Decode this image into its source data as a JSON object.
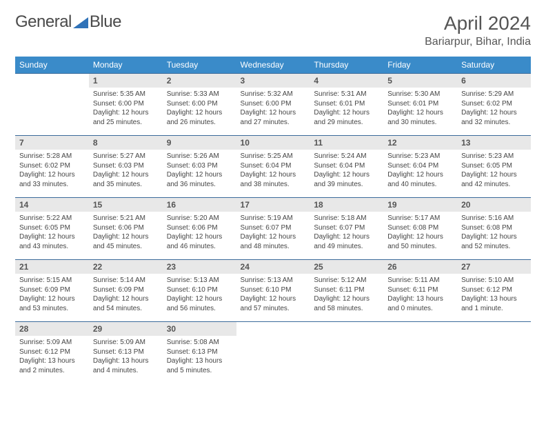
{
  "logo": {
    "text_left": "General",
    "text_right": "Blue",
    "icon_color": "#2f72b8"
  },
  "title": "April 2024",
  "location": "Bariarpur, Bihar, India",
  "colors": {
    "header_bg": "#3a8bc9",
    "row_border": "#3a6a9a",
    "daynum_bg": "#e8e8e8",
    "text": "#555"
  },
  "weekdays": [
    "Sunday",
    "Monday",
    "Tuesday",
    "Wednesday",
    "Thursday",
    "Friday",
    "Saturday"
  ],
  "first_weekday_offset": 1,
  "days": [
    {
      "n": 1,
      "sr": "5:35 AM",
      "ss": "6:00 PM",
      "dh": 12,
      "dm": 25
    },
    {
      "n": 2,
      "sr": "5:33 AM",
      "ss": "6:00 PM",
      "dh": 12,
      "dm": 26
    },
    {
      "n": 3,
      "sr": "5:32 AM",
      "ss": "6:00 PM",
      "dh": 12,
      "dm": 27
    },
    {
      "n": 4,
      "sr": "5:31 AM",
      "ss": "6:01 PM",
      "dh": 12,
      "dm": 29
    },
    {
      "n": 5,
      "sr": "5:30 AM",
      "ss": "6:01 PM",
      "dh": 12,
      "dm": 30
    },
    {
      "n": 6,
      "sr": "5:29 AM",
      "ss": "6:02 PM",
      "dh": 12,
      "dm": 32
    },
    {
      "n": 7,
      "sr": "5:28 AM",
      "ss": "6:02 PM",
      "dh": 12,
      "dm": 33
    },
    {
      "n": 8,
      "sr": "5:27 AM",
      "ss": "6:03 PM",
      "dh": 12,
      "dm": 35
    },
    {
      "n": 9,
      "sr": "5:26 AM",
      "ss": "6:03 PM",
      "dh": 12,
      "dm": 36
    },
    {
      "n": 10,
      "sr": "5:25 AM",
      "ss": "6:04 PM",
      "dh": 12,
      "dm": 38
    },
    {
      "n": 11,
      "sr": "5:24 AM",
      "ss": "6:04 PM",
      "dh": 12,
      "dm": 39
    },
    {
      "n": 12,
      "sr": "5:23 AM",
      "ss": "6:04 PM",
      "dh": 12,
      "dm": 40
    },
    {
      "n": 13,
      "sr": "5:23 AM",
      "ss": "6:05 PM",
      "dh": 12,
      "dm": 42
    },
    {
      "n": 14,
      "sr": "5:22 AM",
      "ss": "6:05 PM",
      "dh": 12,
      "dm": 43
    },
    {
      "n": 15,
      "sr": "5:21 AM",
      "ss": "6:06 PM",
      "dh": 12,
      "dm": 45
    },
    {
      "n": 16,
      "sr": "5:20 AM",
      "ss": "6:06 PM",
      "dh": 12,
      "dm": 46
    },
    {
      "n": 17,
      "sr": "5:19 AM",
      "ss": "6:07 PM",
      "dh": 12,
      "dm": 48
    },
    {
      "n": 18,
      "sr": "5:18 AM",
      "ss": "6:07 PM",
      "dh": 12,
      "dm": 49
    },
    {
      "n": 19,
      "sr": "5:17 AM",
      "ss": "6:08 PM",
      "dh": 12,
      "dm": 50
    },
    {
      "n": 20,
      "sr": "5:16 AM",
      "ss": "6:08 PM",
      "dh": 12,
      "dm": 52
    },
    {
      "n": 21,
      "sr": "5:15 AM",
      "ss": "6:09 PM",
      "dh": 12,
      "dm": 53
    },
    {
      "n": 22,
      "sr": "5:14 AM",
      "ss": "6:09 PM",
      "dh": 12,
      "dm": 54
    },
    {
      "n": 23,
      "sr": "5:13 AM",
      "ss": "6:10 PM",
      "dh": 12,
      "dm": 56
    },
    {
      "n": 24,
      "sr": "5:13 AM",
      "ss": "6:10 PM",
      "dh": 12,
      "dm": 57
    },
    {
      "n": 25,
      "sr": "5:12 AM",
      "ss": "6:11 PM",
      "dh": 12,
      "dm": 58
    },
    {
      "n": 26,
      "sr": "5:11 AM",
      "ss": "6:11 PM",
      "dh": 13,
      "dm": 0
    },
    {
      "n": 27,
      "sr": "5:10 AM",
      "ss": "6:12 PM",
      "dh": 13,
      "dm": 1
    },
    {
      "n": 28,
      "sr": "5:09 AM",
      "ss": "6:12 PM",
      "dh": 13,
      "dm": 2
    },
    {
      "n": 29,
      "sr": "5:09 AM",
      "ss": "6:13 PM",
      "dh": 13,
      "dm": 4
    },
    {
      "n": 30,
      "sr": "5:08 AM",
      "ss": "6:13 PM",
      "dh": 13,
      "dm": 5
    }
  ]
}
